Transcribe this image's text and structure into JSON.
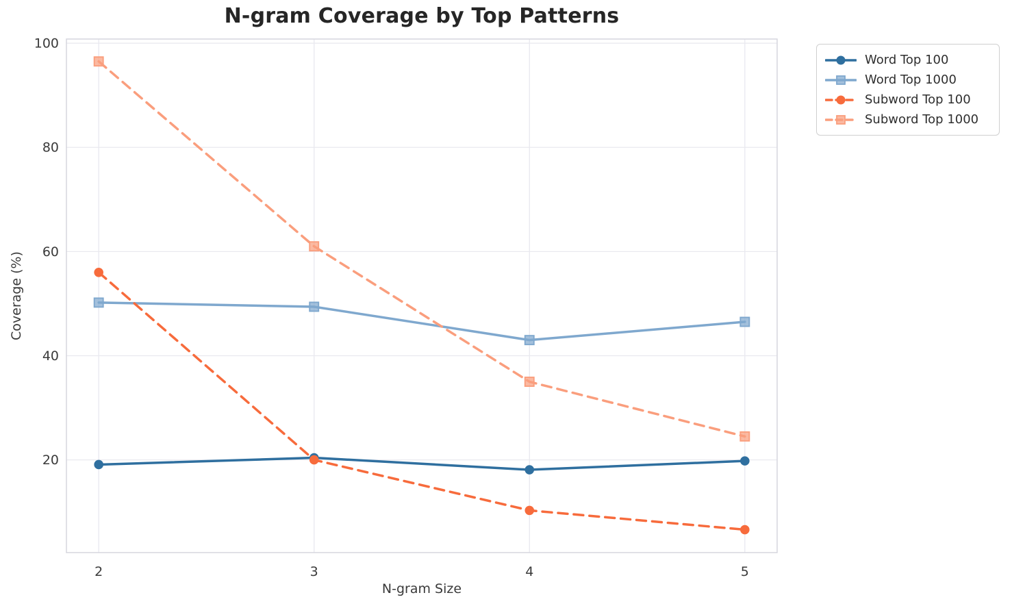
{
  "chart_data": {
    "type": "line",
    "title": "N-gram Coverage by Top Patterns",
    "xlabel": "N-gram Size",
    "ylabel": "Coverage (%)",
    "x": [
      2,
      3,
      4,
      5
    ],
    "xticks": [
      2,
      3,
      4,
      5
    ],
    "yticks": [
      20,
      40,
      60,
      80,
      100
    ],
    "xlim": [
      1.85,
      5.15
    ],
    "ylim": [
      2.2,
      100.8
    ],
    "grid": true,
    "legend_position": "outside upper right",
    "series": [
      {
        "name": "Word Top 100",
        "color": "#2f6f9f",
        "style": "solid",
        "marker": "circle",
        "values": [
          19.1,
          20.4,
          18.1,
          19.8
        ]
      },
      {
        "name": "Word Top 1000",
        "color": "#7fa8ce",
        "style": "solid",
        "marker": "square",
        "values": [
          50.2,
          49.4,
          43.0,
          46.5
        ]
      },
      {
        "name": "Subword Top 100",
        "color": "#f76b3c",
        "style": "dashed",
        "marker": "circle",
        "values": [
          56.0,
          20.0,
          10.3,
          6.6
        ]
      },
      {
        "name": "Subword Top 1000",
        "color": "#fa9e7d",
        "style": "dashed",
        "marker": "square",
        "values": [
          96.5,
          61.0,
          35.0,
          24.5
        ]
      }
    ]
  }
}
